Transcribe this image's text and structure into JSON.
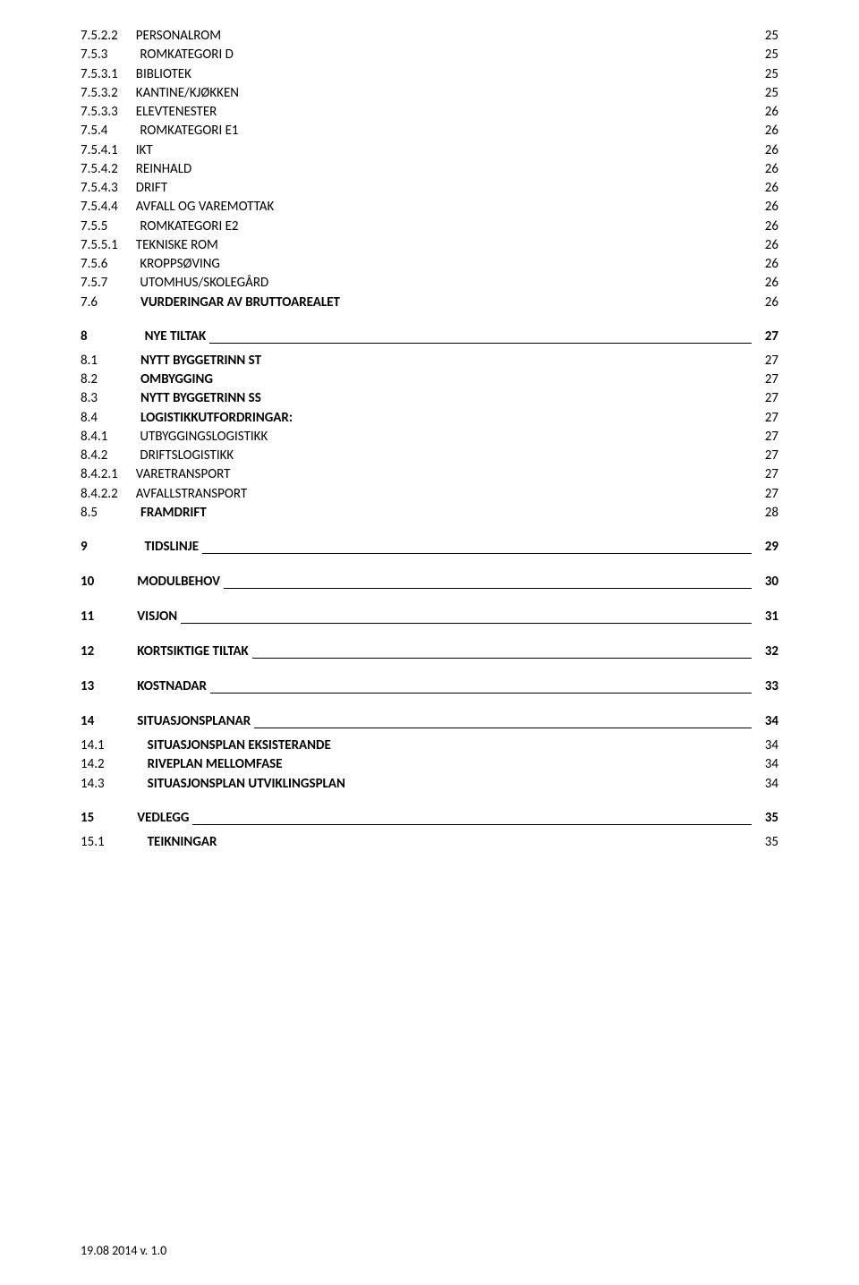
{
  "rows": [
    {
      "type": "plain",
      "num": "7.5.2.2",
      "spClass": "sp-3",
      "label": "PERSONALROM",
      "page": "25",
      "labelClass": ""
    },
    {
      "type": "plain",
      "num": "7.5.3",
      "spClass": "sp-2",
      "label": "ROMKATEGORI D",
      "page": "25",
      "labelClass": "smallcaps"
    },
    {
      "type": "plain",
      "num": "7.5.3.1",
      "spClass": "sp-3",
      "label": "BIBLIOTEK",
      "page": "25",
      "labelClass": ""
    },
    {
      "type": "plain",
      "num": "7.5.3.2",
      "spClass": "sp-3",
      "label": "KANTINE/KJØKKEN",
      "page": "25",
      "labelClass": ""
    },
    {
      "type": "plain",
      "num": "7.5.3.3",
      "spClass": "sp-3",
      "label": "ELEVTENESTER",
      "page": "26",
      "labelClass": ""
    },
    {
      "type": "plain",
      "num": "7.5.4",
      "spClass": "sp-2",
      "label": "ROMKATEGORI E1",
      "page": "26",
      "labelClass": "smallcaps"
    },
    {
      "type": "plain",
      "num": "7.5.4.1",
      "spClass": "sp-3",
      "label": "IKT",
      "page": "26",
      "labelClass": ""
    },
    {
      "type": "plain",
      "num": "7.5.4.2",
      "spClass": "sp-3",
      "label": "REINHALD",
      "page": "26",
      "labelClass": ""
    },
    {
      "type": "plain",
      "num": "7.5.4.3",
      "spClass": "sp-3",
      "label": "DRIFT",
      "page": "26",
      "labelClass": ""
    },
    {
      "type": "plain",
      "num": "7.5.4.4",
      "spClass": "sp-3",
      "label": "AVFALL OG VAREMOTTAK",
      "page": "26",
      "labelClass": ""
    },
    {
      "type": "plain",
      "num": "7.5.5",
      "spClass": "sp-2",
      "label": "ROMKATEGORI E2",
      "page": "26",
      "labelClass": ""
    },
    {
      "type": "plain",
      "num": "7.5.5.1",
      "spClass": "sp-3",
      "label": "TEKNISKE ROM",
      "page": "26",
      "labelClass": ""
    },
    {
      "type": "plain",
      "num": "7.5.6",
      "spClass": "sp-2",
      "label": "KROPPSØVING",
      "page": "26",
      "labelClass": ""
    },
    {
      "type": "plain",
      "num": "7.5.7",
      "spClass": "sp-2",
      "label": "UTOMHUS/SKOLEGÅRD",
      "page": "26",
      "labelClass": ""
    },
    {
      "type": "plain",
      "num": "7.6",
      "spClass": "sp-1",
      "label": "VURDERINGAR AV BRUTTOAREALET",
      "page": "26",
      "labelClass": "bold"
    },
    {
      "type": "section",
      "num": "8",
      "spClass": "sp-0",
      "label": "NYE TILTAK",
      "page": "27"
    },
    {
      "type": "plain",
      "num": "8.1",
      "spClass": "sp-1",
      "label": "NYTT BYGGETRINN  ST",
      "page": "27",
      "labelClass": "bold smallcaps"
    },
    {
      "type": "plain",
      "num": "8.2",
      "spClass": "sp-1",
      "label": "OMBYGGING",
      "page": "27",
      "labelClass": "bold"
    },
    {
      "type": "plain",
      "num": "8.3",
      "spClass": "sp-1",
      "label": "NYTT BYGGETRINN  SS",
      "page": "27",
      "labelClass": "bold smallcaps"
    },
    {
      "type": "plain",
      "num": "8.4",
      "spClass": "sp-1",
      "label": "LOGISTIKKUTFORDRINGAR:",
      "page": "27",
      "labelClass": "bold smallcaps"
    },
    {
      "type": "plain",
      "num": "8.4.1",
      "spClass": "sp-2",
      "label": "UTBYGGINGSLOGISTIKK",
      "page": "27",
      "labelClass": ""
    },
    {
      "type": "plain",
      "num": "8.4.2",
      "spClass": "sp-2",
      "label": "DRIFTSLOGISTIKK",
      "page": "27",
      "labelClass": ""
    },
    {
      "type": "plain",
      "num": "8.4.2.1",
      "spClass": "sp-3",
      "label": "VARETRANSPORT",
      "page": "27",
      "labelClass": ""
    },
    {
      "type": "plain",
      "num": "8.4.2.2",
      "spClass": "sp-3",
      "label": "AVFALLSTRANSPORT",
      "page": "27",
      "labelClass": ""
    },
    {
      "type": "plain",
      "num": "8.5",
      "spClass": "sp-1",
      "label": "FRAMDRIFT",
      "page": "28",
      "labelClass": "bold"
    },
    {
      "type": "section",
      "num": "9",
      "spClass": "sp-0",
      "label": "TIDSLINJE",
      "page": "29"
    },
    {
      "type": "section",
      "num": "10",
      "spClass": "sp-1",
      "label": "MODULBEHOV",
      "page": "30"
    },
    {
      "type": "section",
      "num": "11",
      "spClass": "sp-1",
      "label": "VISJON",
      "page": "31"
    },
    {
      "type": "section",
      "num": "12",
      "spClass": "sp-1",
      "label": "KORTSIKTIGE TILTAK",
      "page": "32"
    },
    {
      "type": "section",
      "num": "13",
      "spClass": "sp-1",
      "label": "KOSTNADAR",
      "page": "33"
    },
    {
      "type": "section",
      "num": "14",
      "spClass": "sp-1",
      "label": "SITUASJONSPLANAR",
      "page": "34"
    },
    {
      "type": "plain",
      "num": "14.1",
      "spClass": "sp-1",
      "label": "SITUASJONSPLAN EKSISTERANDE",
      "page": "34",
      "labelClass": "bold"
    },
    {
      "type": "plain",
      "num": "14.2",
      "spClass": "sp-1",
      "label": "RIVEPLAN MELLOMFASE",
      "page": "34",
      "labelClass": "bold smallcaps"
    },
    {
      "type": "plain",
      "num": "14.3",
      "spClass": "sp-1",
      "label": "SITUASJONSPLAN UTVIKLINGSPLAN",
      "page": "34",
      "labelClass": "bold"
    },
    {
      "type": "section",
      "num": "15",
      "spClass": "sp-1",
      "label": "VEDLEGG",
      "page": "35"
    },
    {
      "type": "plain",
      "num": "15.1",
      "spClass": "sp-1",
      "label": "TEIKNINGAR",
      "page": "35",
      "labelClass": "bold smallcaps"
    }
  ],
  "footer": "19.08 2014 v. 1.0"
}
